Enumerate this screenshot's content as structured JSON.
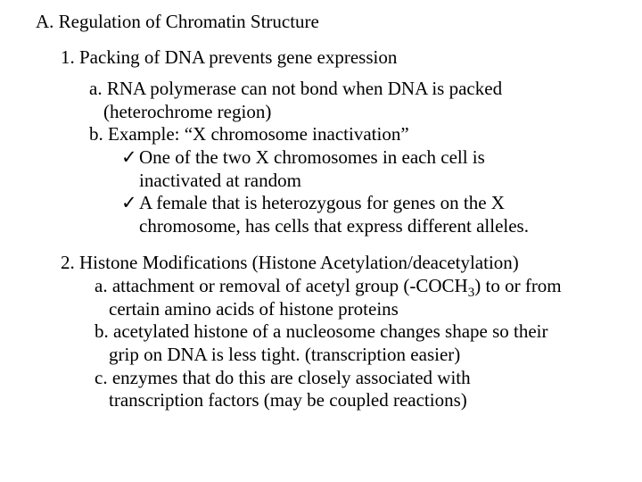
{
  "section_title": "A. Regulation of Chromatin Structure",
  "item1": "1. Packing of DNA prevents gene expression",
  "item1_a_l1": "a. RNA polymerase can not bond when DNA is packed",
  "item1_a_l2": "(heterochrome region)",
  "item1_b": "b. Example: “X chromosome inactivation”",
  "check1_l1": "One of the two X chromosomes in each cell is",
  "check1_l2": "inactivated at random",
  "check2_l1": "A female that is heterozygous for genes on the X",
  "check2_l2": "chromosome, has cells that express different alleles.",
  "item2": "2. Histone Modifications (Histone Acetylation/deacetylation)",
  "item2_a_pre": "a. attachment or removal of acetyl group (-COCH",
  "item2_a_sub": "3",
  "item2_a_post": ") to or from",
  "item2_a_l2": "certain amino acids of histone proteins",
  "item2_b_l1": "b. acetylated histone of a nucleosome changes shape so their",
  "item2_b_l2": "grip on DNA is less tight. (transcription easier)",
  "item2_c_l1": "c. enzymes that do this are closely associated with",
  "item2_c_l2": "transcription factors (may be coupled reactions)",
  "checkmark": "✓",
  "colors": {
    "text": "#000000",
    "background": "#ffffff"
  },
  "font": {
    "family": "Times New Roman",
    "base_size_pt": 16
  }
}
